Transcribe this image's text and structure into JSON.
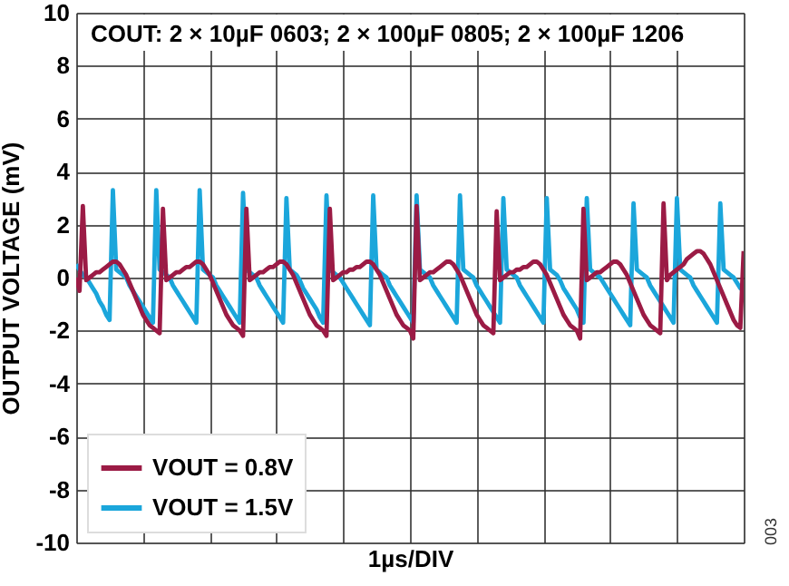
{
  "chart_data": {
    "type": "line",
    "title": "COUT: 2 × 10µF 0603; 2 × 100µF 0805; 2 × 100µF 1206",
    "xlabel": "1µs/DIV",
    "ylabel": "OUTPUT VOLTAGE (mV)",
    "annotations": [
      "003"
    ],
    "categories": [
      null,
      null,
      null,
      null,
      null,
      null,
      null,
      null,
      null,
      null,
      null,
      null,
      null,
      null,
      null,
      null,
      null,
      null,
      null,
      null,
      null,
      null,
      null,
      null,
      null,
      null,
      null,
      null,
      null,
      null,
      null,
      null,
      null,
      null,
      null,
      null,
      null,
      null,
      null,
      null,
      null,
      null,
      null,
      null,
      null,
      null,
      null,
      null,
      null,
      null,
      null,
      null,
      null,
      null,
      null,
      null,
      null,
      null,
      null,
      null,
      null,
      null,
      null,
      null,
      null,
      null,
      null,
      null,
      null,
      null,
      null,
      null,
      null,
      null,
      null,
      null,
      null,
      null,
      null,
      null,
      null,
      null,
      null,
      null,
      null,
      null,
      null,
      null,
      null,
      null,
      null,
      null,
      null,
      null,
      null,
      null,
      null,
      null,
      null,
      null,
      null,
      null,
      null,
      null,
      null,
      null,
      null,
      null,
      null,
      null,
      null,
      null,
      null,
      null,
      null,
      null,
      null,
      null,
      null,
      null,
      null,
      null,
      null,
      null,
      null,
      null,
      null,
      null,
      null,
      null,
      null,
      null,
      null,
      null,
      null,
      null,
      null,
      null,
      null,
      null,
      null,
      null,
      null,
      null,
      null,
      null,
      null,
      null,
      null,
      null,
      null,
      null,
      null,
      null,
      null,
      null,
      null,
      null,
      null,
      null,
      null,
      null,
      null,
      null,
      null,
      null,
      null,
      null,
      null,
      null,
      null,
      null,
      null,
      null,
      null,
      null,
      null,
      null,
      null,
      null,
      null,
      null,
      null,
      null,
      null,
      null,
      null,
      null,
      null,
      null,
      null,
      null,
      null,
      null,
      null,
      null,
      null,
      null,
      null,
      null,
      null
    ],
    "ylim": [
      -10,
      10
    ],
    "yticks": [
      -10,
      -8,
      -6,
      -4,
      -2,
      0,
      2,
      4,
      6,
      8,
      10
    ],
    "grid": true,
    "legend": "bottom left",
    "line_style": "solid",
    "marker": "none",
    "series": [
      {
        "name": "VOUT = 0.8V",
        "color": "#9b1b45",
        "values": [
          0.0,
          -0.5,
          2.7,
          -0.1,
          0.0,
          0.1,
          0.2,
          0.2,
          0.3,
          0.4,
          0.5,
          0.6,
          0.6,
          0.5,
          0.3,
          0.1,
          -0.2,
          -0.5,
          -0.8,
          -1.1,
          -1.4,
          -1.6,
          -1.8,
          -1.9,
          -2.0,
          -2.1,
          2.6,
          -0.1,
          0.0,
          0.1,
          0.2,
          0.2,
          0.3,
          0.4,
          0.4,
          0.5,
          0.6,
          0.6,
          0.5,
          0.3,
          0.1,
          -0.2,
          -0.5,
          -0.8,
          -1.1,
          -1.4,
          -1.6,
          -1.8,
          -1.9,
          -2.0,
          -2.2,
          2.6,
          -0.1,
          0.0,
          0.1,
          0.2,
          0.2,
          0.3,
          0.4,
          0.4,
          0.5,
          0.6,
          0.6,
          0.5,
          0.3,
          0.1,
          -0.2,
          -0.5,
          -0.8,
          -1.1,
          -1.4,
          -1.6,
          -1.8,
          -1.9,
          -2.0,
          -2.2,
          2.6,
          -0.1,
          0.0,
          0.1,
          0.2,
          0.2,
          0.3,
          0.3,
          0.4,
          0.4,
          0.5,
          0.6,
          0.6,
          0.5,
          0.3,
          0.1,
          -0.2,
          -0.5,
          -0.8,
          -1.1,
          -1.4,
          -1.6,
          -1.8,
          -1.9,
          -2.0,
          -2.3,
          2.7,
          -0.1,
          0.0,
          0.1,
          0.2,
          0.2,
          0.3,
          0.4,
          0.5,
          0.6,
          0.6,
          0.5,
          0.3,
          0.1,
          -0.2,
          -0.5,
          -0.8,
          -1.1,
          -1.4,
          -1.6,
          -1.8,
          -1.9,
          -2.0,
          -2.1,
          2.5,
          -0.1,
          0.0,
          0.1,
          0.2,
          0.2,
          0.3,
          0.3,
          0.4,
          0.4,
          0.5,
          0.6,
          0.6,
          0.5,
          0.3,
          0.1,
          -0.2,
          -0.5,
          -0.8,
          -1.1,
          -1.4,
          -1.6,
          -1.8,
          -1.9,
          -2.0,
          -2.3,
          2.6,
          -0.1,
          0.0,
          0.1,
          0.2,
          0.2,
          0.3,
          0.4,
          0.5,
          0.6,
          0.6,
          0.5,
          0.3,
          0.1,
          -0.2,
          -0.5,
          -0.8,
          -1.1,
          -1.4,
          -1.6,
          -1.8,
          -1.9,
          -2.0,
          -2.1,
          2.8,
          -0.1,
          0.1,
          0.2,
          0.3,
          0.4,
          0.5,
          0.7,
          0.8,
          0.9,
          1.0,
          1.0,
          0.9,
          0.7,
          0.5,
          0.2,
          -0.1,
          -0.4,
          -0.7,
          -1.0,
          -1.3,
          -1.6,
          -1.8,
          -1.9,
          1.0
        ]
      },
      {
        "name": "VOUT = 1.5V",
        "color": "#1ba6db",
        "values": [
          0.5,
          0.3,
          0.1,
          0.0,
          -0.2,
          -0.4,
          -0.6,
          -0.9,
          -1.1,
          -1.4,
          -1.6,
          3.3,
          0.3,
          0.2,
          0.1,
          0.0,
          -0.3,
          -0.5,
          -0.7,
          -0.9,
          -1.1,
          -1.3,
          -1.5,
          -1.7,
          3.3,
          0.3,
          0.2,
          0.1,
          0.0,
          -0.3,
          -0.5,
          -0.7,
          -0.9,
          -1.1,
          -1.3,
          -1.5,
          -1.7,
          3.3,
          0.3,
          0.2,
          0.1,
          0.0,
          -0.3,
          -0.5,
          -0.7,
          -0.9,
          -1.1,
          -1.3,
          -1.5,
          -1.7,
          3.2,
          0.3,
          0.2,
          0.1,
          0.0,
          -0.3,
          -0.5,
          -0.7,
          -0.9,
          -1.1,
          -1.3,
          -1.5,
          -1.7,
          3.0,
          0.3,
          0.2,
          0.1,
          -0.1,
          -0.4,
          -0.6,
          -0.8,
          -1.0,
          -1.2,
          -1.5,
          -1.7,
          3.1,
          0.3,
          0.2,
          0.1,
          0.0,
          -0.2,
          -0.4,
          -0.6,
          -0.8,
          -1.0,
          -1.2,
          -1.4,
          -1.6,
          -1.8,
          3.1,
          0.3,
          0.2,
          0.1,
          0.0,
          -0.3,
          -0.5,
          -0.7,
          -0.9,
          -1.1,
          -1.3,
          -1.5,
          -1.7,
          3.1,
          0.3,
          0.2,
          0.1,
          0.0,
          -0.3,
          -0.5,
          -0.7,
          -0.9,
          -1.1,
          -1.3,
          -1.5,
          -1.7,
          3.1,
          0.3,
          0.2,
          0.1,
          0.0,
          -0.3,
          -0.5,
          -0.7,
          -0.9,
          -1.1,
          -1.3,
          -1.5,
          -1.7,
          3.0,
          0.3,
          0.2,
          0.1,
          0.0,
          -0.3,
          -0.5,
          -0.7,
          -0.9,
          -1.1,
          -1.3,
          -1.5,
          -1.7,
          3.0,
          0.3,
          0.2,
          0.1,
          -0.1,
          -0.4,
          -0.6,
          -0.8,
          -1.0,
          -1.2,
          -1.5,
          -1.7,
          3.0,
          0.3,
          0.2,
          0.1,
          0.0,
          -0.2,
          -0.4,
          -0.6,
          -0.8,
          -1.0,
          -1.2,
          -1.4,
          -1.6,
          -1.8,
          2.8,
          0.3,
          0.2,
          0.1,
          0.0,
          -0.3,
          -0.5,
          -0.7,
          -0.9,
          -1.1,
          -1.3,
          -1.5,
          -1.7,
          3.0,
          0.3,
          0.2,
          0.1,
          0.0,
          -0.3,
          -0.5,
          -0.7,
          -0.9,
          -1.1,
          -1.3,
          -1.5,
          -1.7,
          2.8,
          0.3,
          0.2,
          0.1,
          0.0,
          -0.2,
          -0.4,
          -0.5
        ]
      }
    ]
  }
}
